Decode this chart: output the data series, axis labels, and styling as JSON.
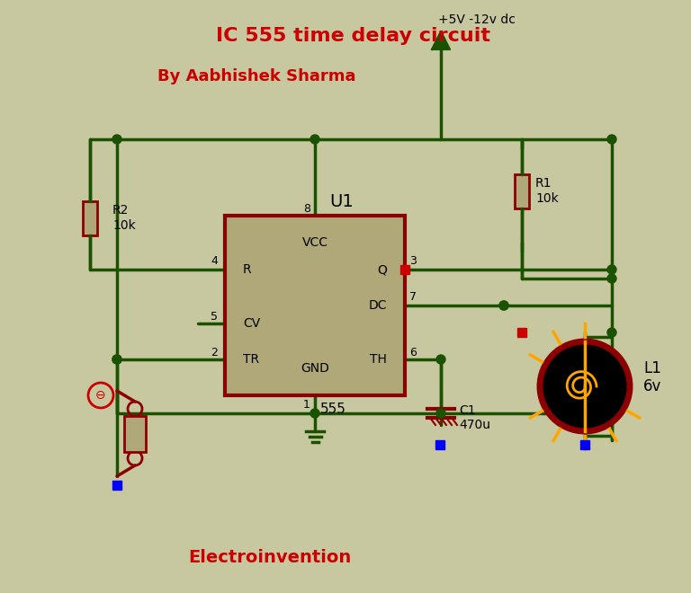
{
  "bg_color": "#c8c8a0",
  "wire_color": "#1a5200",
  "ic_fill": "#b0a878",
  "ic_border": "#8b0000",
  "red_text": "#cc0000",
  "black_text": "#000000",
  "title": "IC 555 time delay circuit",
  "subtitle": "By Aabhishek Sharma",
  "brand": "Electroinvention",
  "vcc_label": "+5V -12v dc",
  "r1_label": "R1\n10k",
  "r2_label": "R2\n10k",
  "c1_label": "C1\n470u",
  "l1_label": "L1\n6v",
  "ic_label": "U1",
  "ic_name": "555",
  "resistor_color": "#8b0000",
  "lamp_outer": "#000000",
  "lamp_ring": "#8b0000",
  "lamp_filament": "#ffa500",
  "lamp_rays": "#ffa500",
  "node_color": "#1a5200",
  "pin_dot_color": "#cc0000",
  "blue_dot": "#0000cc",
  "cap_color": "#8b0000"
}
